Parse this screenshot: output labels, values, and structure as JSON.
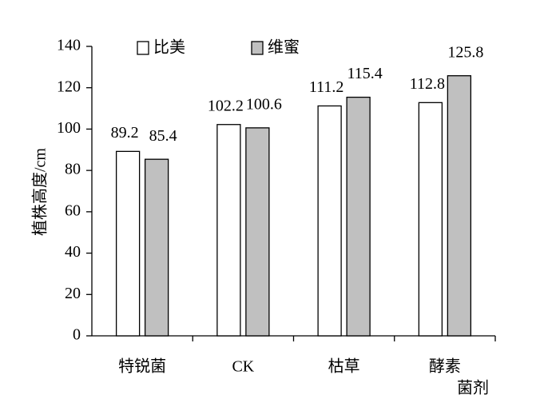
{
  "chart_data": {
    "type": "bar",
    "y_label": "植株高度/cm",
    "x_label": "菌剂",
    "categories": [
      "特锐菌",
      "CK",
      "枯草",
      "酵素"
    ],
    "series": [
      {
        "name": "比美",
        "color": "#ffffff",
        "values": [
          89.2,
          102.2,
          111.2,
          112.8
        ]
      },
      {
        "name": "维蜜",
        "color": "#c0c0c0",
        "values": [
          85.4,
          100.6,
          115.4,
          125.8
        ]
      }
    ],
    "ylim": [
      0,
      140
    ],
    "yticks": [
      0,
      20,
      40,
      60,
      80,
      100,
      120,
      140
    ],
    "grid": false
  }
}
